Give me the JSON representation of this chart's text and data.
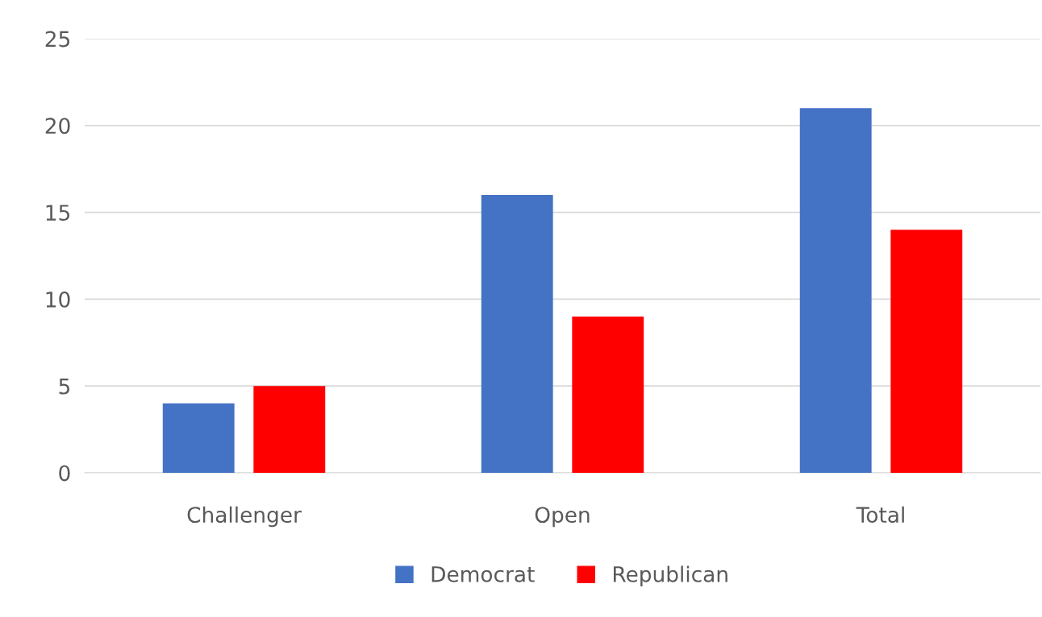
{
  "chart_data": {
    "type": "bar",
    "categories": [
      "Challenger",
      "Open",
      "Total"
    ],
    "series": [
      {
        "name": "Democrat",
        "color": "#4472c4",
        "values": [
          4,
          16,
          21
        ]
      },
      {
        "name": "Republican",
        "color": "#ff0000",
        "values": [
          5,
          9,
          14
        ]
      }
    ],
    "ylim": [
      0,
      25
    ],
    "yticks": [
      0,
      5,
      10,
      15,
      20,
      25
    ],
    "grid": "y",
    "legend": "bottom"
  }
}
